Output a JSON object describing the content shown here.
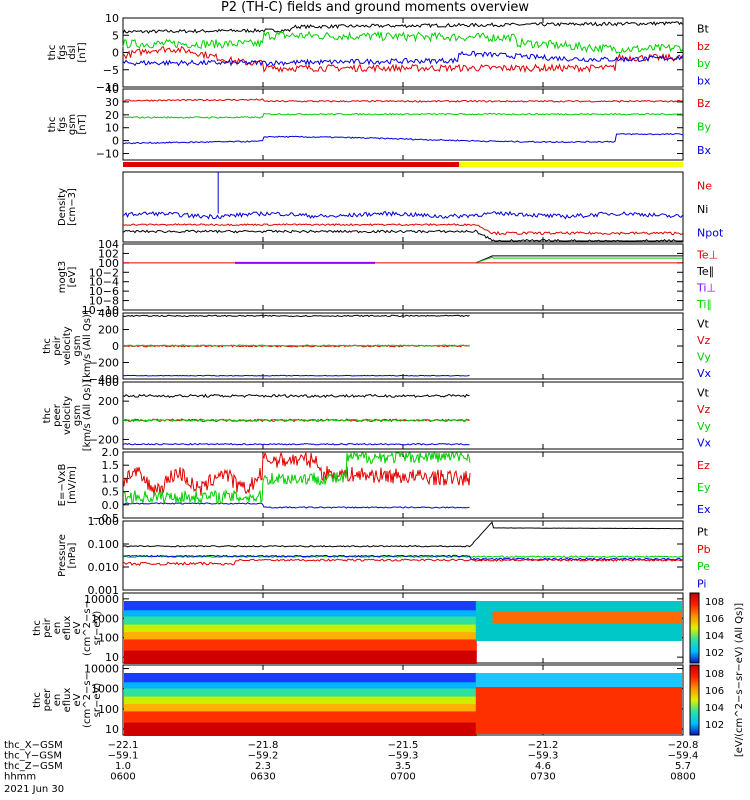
{
  "title": "P2 (TH-C) fields and ground moments overview",
  "colors": {
    "black": "#000000",
    "red": "#e00000",
    "green": "#00d000",
    "blue": "#0000e0",
    "yellow": "#ffff00",
    "cyan": "#00c8c8",
    "purple": "#9000ff",
    "orange": "#ff8800"
  },
  "panels": [
    {
      "id": "fgs-dsl",
      "ylabel": [
        "thc",
        "fgs",
        "dsl",
        "[nT]"
      ],
      "ylim": [
        -10,
        10
      ],
      "ticks": [
        "10",
        "5",
        "0",
        "−5",
        "−10"
      ],
      "tick_values": [
        10,
        5,
        0,
        -5,
        -10
      ],
      "legend": [
        {
          "label": "Bt",
          "color": "black"
        },
        {
          "label": "bz",
          "color": "red"
        },
        {
          "label": "by",
          "color": "green"
        },
        {
          "label": "bx",
          "color": "blue"
        }
      ]
    },
    {
      "id": "fgs-gsm",
      "ylabel": [
        "thc",
        "fgs",
        "gsm",
        "[nT]"
      ],
      "ylim": [
        -15,
        40
      ],
      "ticks": [
        "40",
        "30",
        "20",
        "10",
        "0",
        "−10"
      ],
      "tick_values": [
        40,
        30,
        20,
        10,
        0,
        -10
      ],
      "legend": [
        {
          "label": "Bz",
          "color": "red"
        },
        {
          "label": "By",
          "color": "green"
        },
        {
          "label": "Bx",
          "color": "blue"
        }
      ]
    },
    {
      "id": "density",
      "ylabel": [
        "Density",
        "[cm−3]"
      ],
      "log": true,
      "ylim": [
        7,
        250
      ],
      "ticks": [
        "100",
        "10"
      ],
      "tick_values": [
        100,
        10
      ],
      "legend": [
        {
          "label": "Ne",
          "color": "red"
        },
        {
          "label": "Ni",
          "color": "black"
        },
        {
          "label": "Npot",
          "color": "blue"
        }
      ]
    },
    {
      "id": "temperature",
      "ylabel": [
        "mogt3",
        "[eV]"
      ],
      "log": true,
      "ylim": [
        1e-10,
        10000.0
      ],
      "ticks": [
        "104",
        "102",
        "100",
        "10−2",
        "10−4",
        "10−6",
        "10−8",
        "10−10"
      ],
      "tick_values": [
        4,
        2,
        0,
        -2,
        -4,
        -6,
        -8,
        -10
      ],
      "legend": [
        {
          "label": "Te⊥",
          "color": "red"
        },
        {
          "label": "Te∥",
          "color": "black"
        },
        {
          "label": "Ti⊥",
          "color": "purple"
        },
        {
          "label": "Ti∥",
          "color": "green"
        }
      ]
    },
    {
      "id": "peir-velocity",
      "ylabel": [
        "thc",
        "peir",
        "velocity",
        "gsm",
        "[km/s (All Qs)]"
      ],
      "ylim": [
        -400,
        400
      ],
      "ticks": [
        "400",
        "200",
        "0",
        "−200",
        "−400"
      ],
      "tick_values": [
        400,
        200,
        0,
        -200,
        -400
      ],
      "legend": [
        {
          "label": "Vt",
          "color": "black"
        },
        {
          "label": "Vz",
          "color": "red"
        },
        {
          "label": "Vy",
          "color": "green"
        },
        {
          "label": "Vx",
          "color": "blue"
        }
      ]
    },
    {
      "id": "peer-velocity",
      "ylabel": [
        "thc",
        "peer",
        "velocity",
        "gsm",
        "[km/s (All Qs)]"
      ],
      "ylim": [
        -300,
        400
      ],
      "ticks": [
        "400",
        "200",
        "0",
        "−200"
      ],
      "tick_values": [
        400,
        200,
        0,
        -200
      ],
      "legend": [
        {
          "label": "Vt",
          "color": "black"
        },
        {
          "label": "Vz",
          "color": "red"
        },
        {
          "label": "Vy",
          "color": "green"
        },
        {
          "label": "Vx",
          "color": "blue"
        }
      ]
    },
    {
      "id": "efield",
      "ylabel": [
        "E=−VxB",
        "[mV/m]"
      ],
      "ylim": [
        -0.5,
        2.0
      ],
      "ticks": [
        "2.0",
        "1.5",
        "1.0",
        "0.5",
        "0.0",
        "−0.5"
      ],
      "tick_values": [
        2.0,
        1.5,
        1.0,
        0.5,
        0.0,
        -0.5
      ],
      "legend": [
        {
          "label": "Ez",
          "color": "red"
        },
        {
          "label": "Ey",
          "color": "green"
        },
        {
          "label": "Ex",
          "color": "blue"
        }
      ]
    },
    {
      "id": "pressure",
      "ylabel": [
        "Pressure",
        "[nPa]"
      ],
      "log": true,
      "ylim": [
        0.001,
        1.0
      ],
      "ticks": [
        "1.000",
        "0.100",
        "0.010",
        "0.001"
      ],
      "tick_values": [
        0,
        -1,
        -2,
        -3
      ],
      "legend": [
        {
          "label": "Pt",
          "color": "black"
        },
        {
          "label": "Pb",
          "color": "red"
        },
        {
          "label": "Pe",
          "color": "green"
        },
        {
          "label": "Pi",
          "color": "blue"
        }
      ]
    },
    {
      "id": "peir-en-eflux",
      "ylabel": [
        "thc",
        "peir",
        "en",
        "eflux",
        "eV",
        "(cm^2−s−",
        "sr−eV)"
      ],
      "log": true,
      "ylim": [
        5,
        20000
      ],
      "ticks": [
        "10000",
        "1000",
        "100",
        "10"
      ],
      "tick_values": [
        4,
        3,
        2,
        1
      ]
    },
    {
      "id": "peer-en-eflux",
      "ylabel": [
        "thc",
        "peer",
        "en",
        "eflux",
        "eV",
        "(cm^2−s−",
        "sr−eV)"
      ],
      "log": true,
      "ylim": [
        5,
        15000
      ],
      "ticks": [
        "10000",
        "1000",
        "100",
        "10"
      ],
      "tick_values": [
        4,
        3,
        2,
        1
      ]
    }
  ],
  "colorbar": {
    "label": "[eV/(cm^2−s−sr−eV) (All Qs)]",
    "upper_ticks": [
      "10^8",
      "10^6",
      "10^4",
      "10^2"
    ],
    "lower_ticks": [
      "10^8",
      "10^6",
      "10^4",
      "10^2"
    ]
  },
  "xaxis": {
    "rows": [
      {
        "label": "thc_X−GSM",
        "values": [
          "−22.1",
          "−21.8",
          "−21.5",
          "−21.2",
          "−20.8"
        ]
      },
      {
        "label": "thc_Y−GSM",
        "values": [
          "−59.1",
          "−59.2",
          "−59.3",
          "−59.3",
          "−59.4"
        ]
      },
      {
        "label": "thc_Z−GSM",
        "values": [
          "1.0",
          "2.3",
          "3.5",
          "4.6",
          "5.7"
        ]
      },
      {
        "label": "hhmm",
        "values": [
          "0600",
          "0630",
          "0700",
          "0730",
          "0800"
        ]
      }
    ],
    "date": "2021 Jun 30"
  },
  "chart_data": {
    "type": "line",
    "title": "P2 (TH-C) fields and ground moments overview",
    "x_times": [
      "0600",
      "0630",
      "0700",
      "0730",
      "0800"
    ],
    "series_summary": [
      {
        "panel": "fgs-dsl",
        "name": "Bt",
        "values": [
          6,
          7,
          6.5,
          7,
          8
        ]
      },
      {
        "panel": "fgs-dsl",
        "name": "bz",
        "values": [
          -1,
          2,
          -5,
          -5,
          -6
        ]
      },
      {
        "panel": "fgs-dsl",
        "name": "by",
        "values": [
          3,
          3,
          5,
          4,
          2
        ]
      },
      {
        "panel": "fgs-dsl",
        "name": "bx",
        "values": [
          -3,
          -4,
          -3,
          -1,
          -2
        ]
      },
      {
        "panel": "fgs-gsm",
        "name": "Bz",
        "values": [
          30,
          32,
          31,
          31,
          31
        ]
      },
      {
        "panel": "fgs-gsm",
        "name": "By",
        "values": [
          20,
          18,
          21,
          21,
          22
        ]
      },
      {
        "panel": "fgs-gsm",
        "name": "Bx",
        "values": [
          -2,
          0,
          2,
          1,
          4
        ]
      },
      {
        "panel": "density",
        "name": "Ne",
        "values": [
          17,
          18,
          16,
          10,
          10
        ]
      },
      {
        "panel": "density",
        "name": "Ni",
        "values": [
          12,
          13,
          12,
          7,
          7
        ]
      },
      {
        "panel": "density",
        "name": "Npot",
        "values": [
          30,
          28,
          30,
          28,
          27
        ]
      },
      {
        "panel": "peir-velocity",
        "name": "Vt",
        "values": [
          360,
          370,
          360
        ]
      },
      {
        "panel": "peir-velocity",
        "name": "Vx",
        "values": [
          -360,
          -360,
          -360
        ]
      },
      {
        "panel": "peer-velocity",
        "name": "Vt",
        "values": [
          250,
          260,
          250
        ]
      },
      {
        "panel": "peer-velocity",
        "name": "Vx",
        "values": [
          -250,
          -250,
          -250
        ]
      },
      {
        "panel": "efield",
        "name": "Ez",
        "values": [
          0.9,
          1.8,
          1.0,
          0.5
        ]
      },
      {
        "panel": "efield",
        "name": "Ey",
        "values": [
          0.3,
          0.8,
          1.8,
          2.0
        ]
      },
      {
        "panel": "efield",
        "name": "Ex",
        "values": [
          0.0,
          -0.1,
          -0.1,
          -0.1
        ]
      },
      {
        "panel": "pressure",
        "name": "Pt",
        "values": [
          0.08,
          0.08,
          0.05,
          0.5,
          0.45
        ]
      },
      {
        "panel": "pressure",
        "name": "Pb",
        "values": [
          0.015,
          0.02,
          0.02,
          0.02,
          0.02
        ]
      },
      {
        "panel": "pressure",
        "name": "Pe",
        "values": [
          0.03,
          0.03,
          0.03,
          0.03,
          0.03
        ]
      }
    ]
  }
}
